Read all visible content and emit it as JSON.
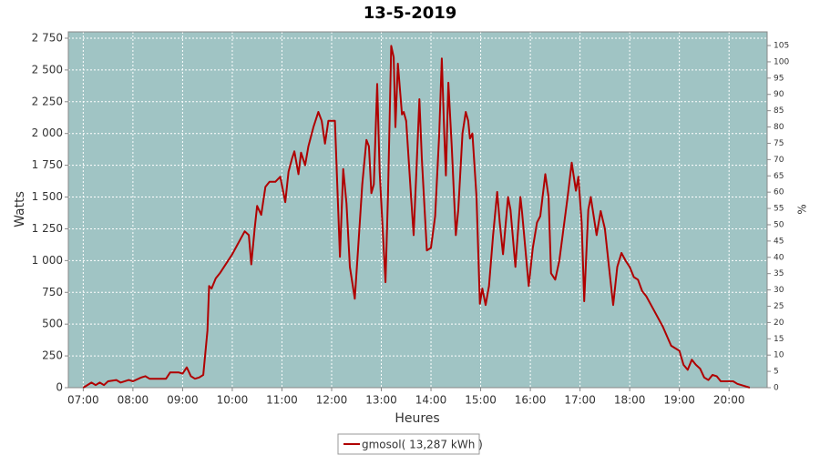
{
  "chart_data": {
    "type": "line",
    "title": "13-5-2019",
    "xlabel": "Heures",
    "ylabel": "Watts",
    "y2label": "%",
    "legend_text": "gmosol( 13,287 kWh )",
    "background": "#a0c4c4",
    "grid": true,
    "xlim": [
      "06:42",
      "20:46"
    ],
    "xticks": [
      "07:00",
      "08:00",
      "09:00",
      "10:00",
      "11:00",
      "12:00",
      "13:00",
      "14:00",
      "15:00",
      "16:00",
      "17:00",
      "18:00",
      "19:00",
      "20:00"
    ],
    "ylim": [
      0,
      2800
    ],
    "yticks": [
      0,
      250,
      500,
      750,
      {
        "value": 1000,
        "label": "1 000"
      },
      {
        "value": 1250,
        "label": "1 250"
      },
      {
        "value": 1500,
        "label": "1 500"
      },
      {
        "value": 1750,
        "label": "1 750"
      },
      {
        "value": 2000,
        "label": "2 000"
      },
      {
        "value": 2250,
        "label": "2 250"
      },
      {
        "value": 2500,
        "label": "2 500"
      },
      {
        "value": 2750,
        "label": "2 750"
      }
    ],
    "y2lim": [
      0,
      109.2
    ],
    "y2ticks": [
      0,
      5,
      10,
      15,
      20,
      25,
      30,
      35,
      40,
      45,
      50,
      55,
      60,
      65,
      70,
      75,
      80,
      85,
      90,
      95,
      100,
      105
    ],
    "x": [
      "07:00",
      "07:10",
      "07:15",
      "07:20",
      "07:25",
      "07:30",
      "07:40",
      "07:45",
      "07:55",
      "08:00",
      "08:10",
      "08:15",
      "08:20",
      "08:30",
      "08:40",
      "08:45",
      "08:55",
      "09:00",
      "09:05",
      "09:10",
      "09:15",
      "09:20",
      "09:25",
      "09:30",
      "09:32",
      "09:35",
      "09:40",
      "09:45",
      "10:00",
      "10:15",
      "10:20",
      "10:23",
      "10:27",
      "10:30",
      "10:35",
      "10:40",
      "10:45",
      "10:52",
      "10:58",
      "11:04",
      "11:08",
      "11:12",
      "11:15",
      "11:20",
      "11:23",
      "11:28",
      "11:32",
      "11:38",
      "11:44",
      "11:48",
      "11:52",
      "11:56",
      "12:04",
      "12:10",
      "12:14",
      "12:18",
      "12:22",
      "12:28",
      "12:32",
      "12:37",
      "12:42",
      "12:45",
      "12:48",
      "12:51",
      "12:55",
      "12:58",
      "13:05",
      "13:08",
      "13:12",
      "13:15",
      "13:17",
      "13:20",
      "13:25",
      "13:27",
      "13:30",
      "13:36",
      "13:39",
      "13:43",
      "13:46",
      "13:49",
      "13:55",
      "14:00",
      "14:05",
      "14:10",
      "14:13",
      "14:16",
      "14:18",
      "14:21",
      "14:25",
      "14:30",
      "14:33",
      "14:38",
      "14:42",
      "14:45",
      "14:47",
      "14:50",
      "14:55",
      "14:59",
      "15:02",
      "15:06",
      "15:10",
      "15:15",
      "15:20",
      "15:23",
      "15:27",
      "15:33",
      "15:36",
      "15:42",
      "15:48",
      "15:50",
      "15:58",
      "16:03",
      "16:08",
      "16:12",
      "16:18",
      "16:22",
      "16:25",
      "16:30",
      "16:35",
      "16:45",
      "16:50",
      "16:55",
      "16:58",
      "17:02",
      "17:05",
      "17:10",
      "17:13",
      "17:20",
      "17:25",
      "17:30",
      "17:35",
      "17:40",
      "17:45",
      "17:50",
      "17:55",
      "18:00",
      "18:05",
      "18:10",
      "18:15",
      "18:20",
      "18:30",
      "18:40",
      "18:50",
      "19:00",
      "19:05",
      "19:10",
      "19:15",
      "19:20",
      "19:25",
      "19:30",
      "19:35",
      "19:40",
      "19:45",
      "19:50",
      "19:55",
      "20:00",
      "20:05",
      "20:10",
      "20:15",
      "20:20",
      "20:25"
    ],
    "series": [
      {
        "name": "gmosol",
        "color": "#b00000",
        "values": [
          0,
          40,
          20,
          40,
          20,
          50,
          60,
          40,
          60,
          50,
          80,
          90,
          70,
          70,
          70,
          120,
          120,
          110,
          160,
          90,
          70,
          80,
          100,
          450,
          800,
          780,
          860,
          900,
          1050,
          1230,
          1200,
          970,
          1250,
          1430,
          1360,
          1580,
          1620,
          1620,
          1660,
          1460,
          1700,
          1800,
          1860,
          1680,
          1850,
          1750,
          1900,
          2050,
          2170,
          2100,
          1920,
          2100,
          2100,
          1030,
          1720,
          1450,
          950,
          700,
          1100,
          1600,
          1950,
          1900,
          1530,
          1600,
          2390,
          1700,
          830,
          1500,
          2690,
          2600,
          2050,
          2550,
          2150,
          2170,
          2100,
          1500,
          1200,
          1800,
          2270,
          1800,
          1080,
          1100,
          1350,
          2000,
          2590,
          2000,
          1670,
          2400,
          1900,
          1200,
          1400,
          2000,
          2170,
          2100,
          1960,
          2000,
          1500,
          660,
          780,
          650,
          800,
          1200,
          1540,
          1300,
          1050,
          1500,
          1400,
          950,
          1500,
          1380,
          800,
          1100,
          1300,
          1350,
          1680,
          1500,
          900,
          850,
          1000,
          1500,
          1770,
          1550,
          1660,
          1300,
          680,
          1400,
          1500,
          1200,
          1390,
          1250,
          950,
          650,
          950,
          1060,
          1000,
          950,
          870,
          850,
          760,
          720,
          600,
          480,
          330,
          290,
          180,
          140,
          220,
          180,
          150,
          80,
          60,
          100,
          90,
          50,
          50,
          50,
          50,
          30,
          20,
          10,
          0
        ]
      }
    ]
  }
}
